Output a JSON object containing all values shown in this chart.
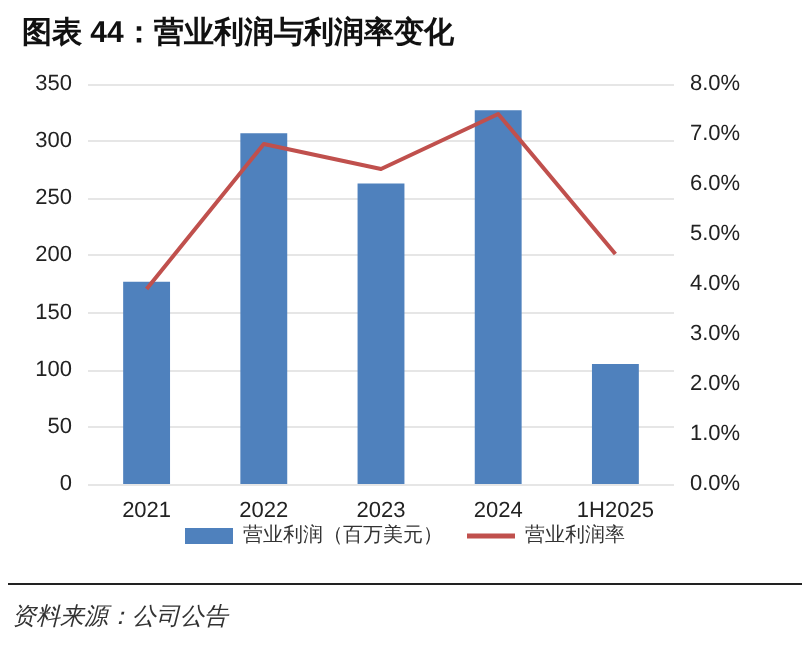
{
  "chart_data": {
    "type": "bar",
    "title": "图表 44：营业利润与利润率变化",
    "categories": [
      "2021",
      "2022",
      "2023",
      "2024",
      "1H2025"
    ],
    "series": [
      {
        "name": "营业利润（百万美元）",
        "color": "#4f81bd",
        "values": [
          177,
          307,
          263,
          327,
          105
        ]
      },
      {
        "name": "营业利润率",
        "type": "line",
        "axis": "y2",
        "color": "#c0504d",
        "values": [
          3.9,
          6.8,
          6.3,
          7.4,
          4.6
        ]
      }
    ],
    "ylim": [
      0,
      350
    ],
    "yticks": [
      0,
      50,
      100,
      150,
      200,
      250,
      300,
      350
    ],
    "y2lim": [
      0,
      8
    ],
    "y2ticks": [
      {
        "value": 0,
        "label": "0.0%"
      },
      {
        "value": 1,
        "label": "1.0%"
      },
      {
        "value": 2,
        "label": "2.0%"
      },
      {
        "value": 3,
        "label": "3.0%"
      },
      {
        "value": 4,
        "label": "4.0%"
      },
      {
        "value": 5,
        "label": "5.0%"
      },
      {
        "value": 6,
        "label": "6.0%"
      },
      {
        "value": 7,
        "label": "7.0%"
      },
      {
        "value": 8,
        "label": "8.0%"
      }
    ],
    "grid": "y",
    "legend": "bottom",
    "marker": "none",
    "annotations": [
      "资料来源：公司公告"
    ]
  }
}
